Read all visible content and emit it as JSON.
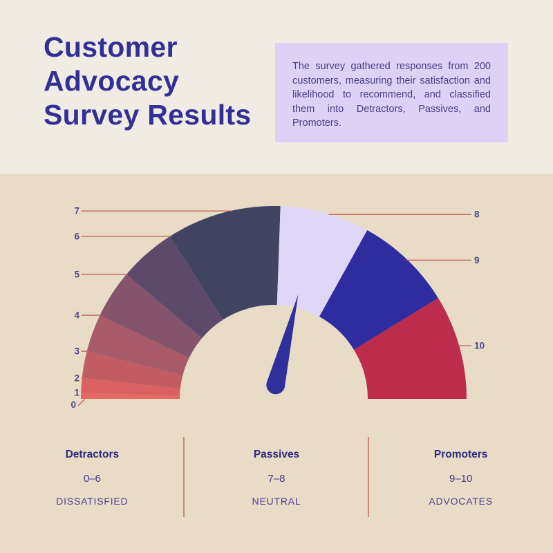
{
  "header": {
    "title_lines": [
      "Customer",
      "Advocacy",
      "Survey Results"
    ],
    "title_color": "#322f96",
    "info_box": {
      "text": "The survey gathered responses from 200 customers, measuring their satisfaction and likelihood to recommend, and classified them into Detractors, Passives, and Promoters.",
      "bg_color": "#ddd2f6",
      "text_color": "#473e87"
    }
  },
  "chart_data": {
    "type": "gauge",
    "title": "Customer Advocacy Survey Results",
    "min": 0,
    "max": 10,
    "needle": {
      "value": 7.4,
      "angle_deg": 76,
      "color": "#30309c"
    },
    "layout_note": "semicircular gauge; scores 0-7 on left half with widening segments, 7-10 on right half; angles are math degrees (180=left, 90=up, 0=right)",
    "segments": [
      {
        "range": "0–1",
        "color": "#e66a64",
        "a0": 180,
        "a1": 178.2
      },
      {
        "range": "1–2",
        "color": "#da6062",
        "a0": 178.2,
        "a1": 173.8
      },
      {
        "range": "2–3",
        "color": "#c05c62",
        "a0": 173.8,
        "a1": 165.7
      },
      {
        "range": "3–4",
        "color": "#a85a68",
        "a0": 165.7,
        "a1": 154.3
      },
      {
        "range": "4–5",
        "color": "#84536c",
        "a0": 154.3,
        "a1": 139.8
      },
      {
        "range": "5–6",
        "color": "#5d4969",
        "a0": 139.8,
        "a1": 122.6
      },
      {
        "range": "6–7",
        "color": "#414460",
        "a0": 122.6,
        "a1": 88
      },
      {
        "range": "7–8",
        "color": "#ded5f7",
        "a0": 88,
        "a1": 61
      },
      {
        "range": "8–9",
        "color": "#2e2c9e",
        "a0": 61,
        "a1": 31.5
      },
      {
        "range": "9–10",
        "color": "#bd2b4d",
        "a0": 31.5,
        "a1": 0
      }
    ],
    "ticks": [
      {
        "label": "0",
        "side": "corner"
      },
      {
        "label": "1",
        "side": "left",
        "angle": 178.2
      },
      {
        "label": "2",
        "side": "left",
        "angle": 173.8
      },
      {
        "label": "3",
        "side": "left",
        "angle": 165.7
      },
      {
        "label": "4",
        "side": "left",
        "angle": 154.3
      },
      {
        "label": "5",
        "side": "left",
        "angle": 139.8
      },
      {
        "label": "6",
        "side": "left",
        "angle": 122.6
      },
      {
        "label": "7",
        "side": "left",
        "angle": 103
      },
      {
        "label": "8",
        "side": "right",
        "angle": 73
      },
      {
        "label": "9",
        "side": "right",
        "angle": 46
      },
      {
        "label": "10",
        "side": "right",
        "angle": 16
      }
    ],
    "leader_color": "#c4635a",
    "tick_label_color": "#4c4989"
  },
  "legend": {
    "divider_color": "#cc8678",
    "columns": [
      {
        "title": "Detractors",
        "range": "0–6",
        "tag": "DISSATISFIED"
      },
      {
        "title": "Passives",
        "range": "7–8",
        "tag": "NEUTRAL"
      },
      {
        "title": "Promoters",
        "range": "9–10",
        "tag": "ADVOCATES"
      }
    ]
  },
  "colors": {
    "background_top": "#f1ece3",
    "background_chart": "#e8dcc6"
  }
}
